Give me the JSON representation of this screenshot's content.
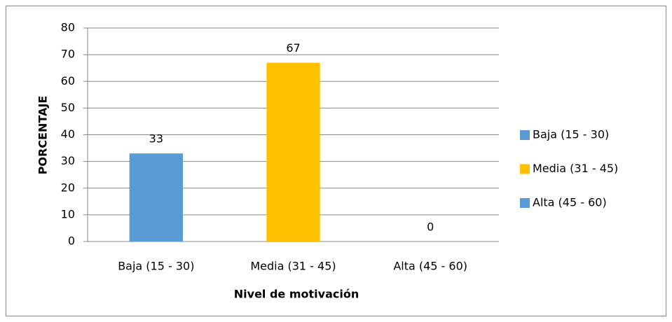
{
  "chart_data": {
    "type": "bar",
    "x_label": "Nivel de motivación",
    "y_label": "PORCENTAJE",
    "categories": [
      "Baja (15 - 30)",
      "Media (31 - 45)",
      "Alta (45 - 60)"
    ],
    "values": [
      33,
      67,
      0
    ],
    "colors": [
      "#5b9bd5",
      "#ffc000",
      "#5b9bd5"
    ],
    "ylim": [
      0,
      80
    ],
    "yticks": [
      0,
      10,
      20,
      30,
      40,
      50,
      60,
      70,
      80
    ],
    "grid": true,
    "legend": "right"
  }
}
